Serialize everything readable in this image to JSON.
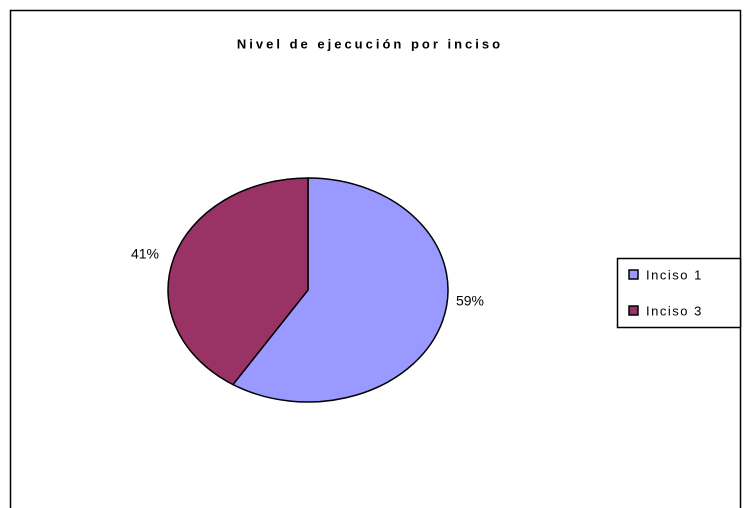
{
  "chart_data": {
    "type": "pie",
    "title": "Nivel de ejecución por inciso",
    "categories": [
      "Inciso 1",
      "Inciso 3"
    ],
    "values": [
      59,
      41
    ],
    "value_labels": [
      "59%",
      "41%"
    ],
    "colors": [
      "#9999ff",
      "#993366"
    ],
    "legend": "right"
  }
}
